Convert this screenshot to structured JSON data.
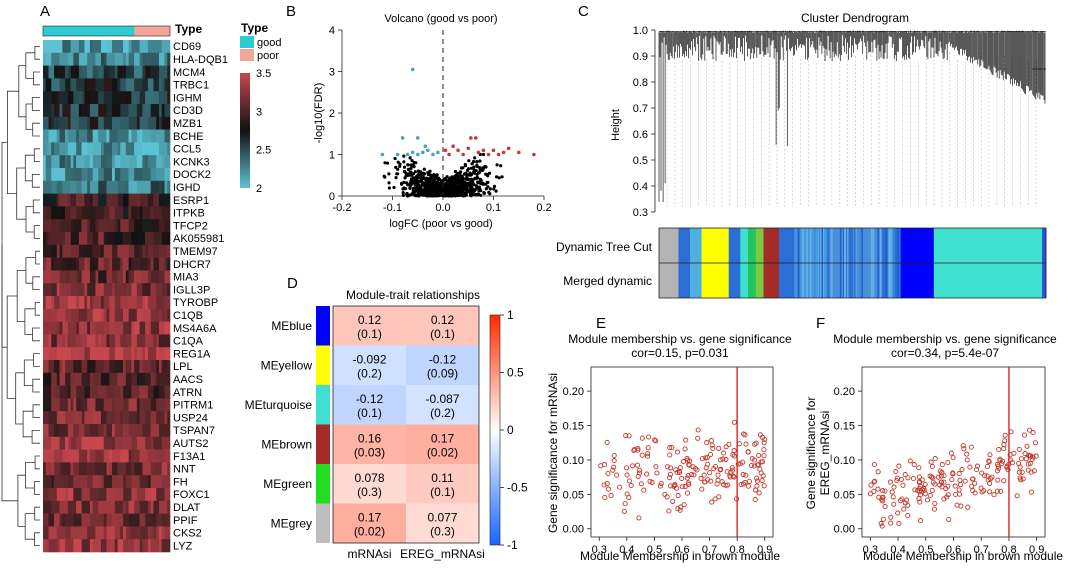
{
  "panel_labels": {
    "a": "A",
    "b": "B",
    "c": "C",
    "d": "D",
    "e": "E",
    "f": "F"
  },
  "colors": {
    "good": "#2ecbd1",
    "poor": "#f4a59a",
    "heat_low": "#5cc3d4",
    "heat_mid": "#111111",
    "heat_high": "#c8464e",
    "volcano_up": "#c43a3a",
    "volcano_down": "#4f9fc6",
    "volcano_ns": "#000000",
    "corr_neg": "#1565ff",
    "corr_pos": "#ff2a00",
    "scatter": "#c0392b",
    "cutline": "#d62728"
  },
  "chart_data": [
    {
      "panel": "A",
      "type": "heatmap",
      "annotation_label": "Type",
      "legend_title": "Type",
      "groups": [
        {
          "name": "good",
          "fraction": 0.72
        },
        {
          "name": "poor",
          "fraction": 0.28
        }
      ],
      "colorbar": {
        "min": 2,
        "max": 3.5,
        "ticks": [
          "3.5",
          "3",
          "2.5",
          "2"
        ]
      },
      "genes": [
        {
          "name": "CD69",
          "level": 2.15
        },
        {
          "name": "HLA-DQB1",
          "level": 2.25
        },
        {
          "name": "MCM4",
          "level": 2.55
        },
        {
          "name": "TRBC1",
          "level": 2.6
        },
        {
          "name": "IGHM",
          "level": 2.62
        },
        {
          "name": "CD3D",
          "level": 2.6
        },
        {
          "name": "MZB1",
          "level": 2.65
        },
        {
          "name": "BCHE",
          "level": 2.2
        },
        {
          "name": "CCL5",
          "level": 2.15
        },
        {
          "name": "KCNK3",
          "level": 2.2
        },
        {
          "name": "DOCK2",
          "level": 2.25
        },
        {
          "name": "IGHD",
          "level": 2.35
        },
        {
          "name": "ESRP1",
          "level": 2.9
        },
        {
          "name": "ITPKB",
          "level": 2.95
        },
        {
          "name": "TFCP2",
          "level": 2.95
        },
        {
          "name": "AK055981",
          "level": 3.0
        },
        {
          "name": "TMEM97",
          "level": 3.0
        },
        {
          "name": "DHCR7",
          "level": 3.05
        },
        {
          "name": "MIA3",
          "level": 3.1
        },
        {
          "name": "IGLL3P",
          "level": 3.2
        },
        {
          "name": "TYROBP",
          "level": 3.3
        },
        {
          "name": "C1QB",
          "level": 3.25
        },
        {
          "name": "MS4A6A",
          "level": 3.25
        },
        {
          "name": "C1QA",
          "level": 3.2
        },
        {
          "name": "REG1A",
          "level": 3.45
        },
        {
          "name": "LPL",
          "level": 3.1
        },
        {
          "name": "AACS",
          "level": 3.05
        },
        {
          "name": "ATRN",
          "level": 3.05
        },
        {
          "name": "PITRM1",
          "level": 3.1
        },
        {
          "name": "USP24",
          "level": 3.15
        },
        {
          "name": "TSPAN7",
          "level": 3.2
        },
        {
          "name": "AUTS2",
          "level": 3.3
        },
        {
          "name": "F13A1",
          "level": 3.3
        },
        {
          "name": "NNT",
          "level": 3.2
        },
        {
          "name": "FH",
          "level": 3.15
        },
        {
          "name": "FOXC1",
          "level": 3.25
        },
        {
          "name": "DLAT",
          "level": 3.2
        },
        {
          "name": "PPIF",
          "level": 3.15
        },
        {
          "name": "CKS2",
          "level": 3.25
        },
        {
          "name": "LYZ",
          "level": 3.3
        }
      ]
    },
    {
      "panel": "B",
      "type": "scatter",
      "title": "Volcano (good vs poor)",
      "xlabel": "logFC (poor vs good)",
      "ylabel": "-log10(FDR)",
      "xlim": [
        -0.2,
        0.2
      ],
      "ylim": [
        0,
        4
      ],
      "xticks": [
        -0.2,
        -0.1,
        0.0,
        0.1,
        0.2
      ],
      "yticks": [
        0,
        1,
        2,
        3,
        4
      ],
      "xtick_labels": [
        "-0.2",
        "-0.1",
        "0.0",
        "0.1",
        "0.2"
      ],
      "ytick_labels": [
        "0",
        "1",
        "2",
        "3",
        "4"
      ],
      "vline": 0,
      "up": [
        [
          0.005,
          1.1
        ],
        [
          0.012,
          1.0
        ],
        [
          0.02,
          1.2
        ],
        [
          0.03,
          1.1
        ],
        [
          0.04,
          1.0
        ],
        [
          0.05,
          1.15
        ],
        [
          0.055,
          1.4
        ],
        [
          0.065,
          1.4
        ],
        [
          0.07,
          1.05
        ],
        [
          0.08,
          1.1
        ],
        [
          0.09,
          1.0
        ],
        [
          0.1,
          1.1
        ],
        [
          0.11,
          1.0
        ],
        [
          0.12,
          1.05
        ],
        [
          0.13,
          1.15
        ],
        [
          0.15,
          1.05
        ],
        [
          0.18,
          1.0
        ]
      ],
      "down": [
        [
          -0.06,
          3.05
        ],
        [
          -0.08,
          1.4
        ],
        [
          -0.05,
          1.4
        ],
        [
          -0.03,
          1.1
        ],
        [
          -0.04,
          1.05
        ],
        [
          -0.02,
          1.0
        ],
        [
          -0.05,
          1.0
        ],
        [
          -0.06,
          1.05
        ],
        [
          -0.07,
          1.0
        ],
        [
          -0.09,
          1.0
        ],
        [
          -0.12,
          1.0
        ],
        [
          -0.01,
          1.05
        ],
        [
          -0.035,
          1.2
        ]
      ]
    },
    {
      "panel": "C",
      "type": "line",
      "title": "Cluster Dendrogram",
      "ylabel": "Height",
      "ylim": [
        0.3,
        1.0
      ],
      "yticks": [
        "1.0",
        "0.9",
        "0.8",
        "0.7",
        "0.6",
        "0.5",
        "0.4",
        "0.3"
      ],
      "row_labels": [
        "Dynamic Tree Cut",
        "Merged dynamic"
      ],
      "module_bands": [
        {
          "color": "#b4b4b4",
          "start": 0.0,
          "end": 0.05
        },
        {
          "color": "#2b6fd6",
          "start": 0.05,
          "end": 0.08
        },
        {
          "color": "#4fb0e0",
          "start": 0.08,
          "end": 0.11
        },
        {
          "color": "#ffff00",
          "start": 0.11,
          "end": 0.18
        },
        {
          "color": "#2b6fd6",
          "start": 0.18,
          "end": 0.21
        },
        {
          "color": "#40e0d0",
          "start": 0.21,
          "end": 0.23
        },
        {
          "color": "#22c55e",
          "start": 0.23,
          "end": 0.25
        },
        {
          "color": "#7ac943",
          "start": 0.25,
          "end": 0.27
        },
        {
          "color": "#a52a2a",
          "start": 0.27,
          "end": 0.31
        },
        {
          "color": "#2b6fd6",
          "start": 0.31,
          "end": 0.35
        },
        {
          "color": "#4a90d9",
          "start": 0.35,
          "end": 0.62
        },
        {
          "color": "#0000ff",
          "start": 0.62,
          "end": 0.71
        },
        {
          "color": "#40e0d0",
          "start": 0.71,
          "end": 0.99
        },
        {
          "color": "#2b4fd6",
          "start": 0.99,
          "end": 1.0
        }
      ]
    },
    {
      "panel": "D",
      "type": "heatmap",
      "title": "Module-trait relationships",
      "columns": [
        "mRNAsi",
        "EREG_mRNAsi"
      ],
      "rows": [
        {
          "module": "MEblue",
          "color": "#0000ff",
          "cells": [
            {
              "r": 0.12,
              "text": "0.12",
              "p": "(0.1)"
            },
            {
              "r": 0.12,
              "text": "0.12",
              "p": "(0.1)"
            }
          ]
        },
        {
          "module": "MEyellow",
          "color": "#ffff00",
          "cells": [
            {
              "r": -0.092,
              "text": "-0.092",
              "p": "(0.2)"
            },
            {
              "r": -0.12,
              "text": "-0.12",
              "p": "(0.09)"
            }
          ]
        },
        {
          "module": "MEturquoise",
          "color": "#40e0d0",
          "cells": [
            {
              "r": -0.12,
              "text": "-0.12",
              "p": "(0.1)"
            },
            {
              "r": -0.087,
              "text": "-0.087",
              "p": "(0.2)"
            }
          ]
        },
        {
          "module": "MEbrown",
          "color": "#a52a2a",
          "cells": [
            {
              "r": 0.16,
              "text": "0.16",
              "p": "(0.03)"
            },
            {
              "r": 0.17,
              "text": "0.17",
              "p": "(0.02)"
            }
          ]
        },
        {
          "module": "MEgreen",
          "color": "#22dd22",
          "cells": [
            {
              "r": 0.078,
              "text": "0.078",
              "p": "(0.3)"
            },
            {
              "r": 0.11,
              "text": "0.11",
              "p": "(0.1)"
            }
          ]
        },
        {
          "module": "MEgrey",
          "color": "#bebebe",
          "cells": [
            {
              "r": 0.17,
              "text": "0.17",
              "p": "(0.02)"
            },
            {
              "r": 0.077,
              "text": "0.077",
              "p": "(0.3)"
            }
          ]
        }
      ],
      "colorbar": {
        "min": -1,
        "max": 1,
        "ticks": [
          1,
          0.5,
          0,
          -0.5,
          -1
        ],
        "tick_labels": [
          "1",
          "0.5",
          "0",
          "-0.5",
          "-1"
        ]
      }
    },
    {
      "panel": "E",
      "type": "scatter",
      "title": "Module membership vs. gene significance",
      "subtitle": "cor=0.15, p=0.031",
      "xlabel": "Module Membership in brown module",
      "ylabel_lines": [
        "Gene significance for  mRNAsi"
      ],
      "xlim": [
        0.27,
        0.93
      ],
      "ylim": [
        -0.012,
        0.235
      ],
      "xticks": [
        0.3,
        0.4,
        0.5,
        0.6,
        0.7,
        0.8,
        0.9
      ],
      "yticks": [
        0.0,
        0.05,
        0.1,
        0.15,
        0.2
      ],
      "xtick_labels": [
        "0.3",
        "0.4",
        "0.5",
        "0.6",
        "0.7",
        "0.8",
        "0.9"
      ],
      "ytick_labels": [
        "0.00",
        "0.05",
        "0.10",
        "0.15",
        "0.20"
      ],
      "vline": 0.8,
      "n": 200,
      "seed": 7,
      "slope": 0.04,
      "intercept": 0.075,
      "noise": 0.05
    },
    {
      "panel": "F",
      "type": "scatter",
      "title": "Module membership vs. gene significance",
      "subtitle": "cor=0.34, p=5.4e-07",
      "xlabel": "Module Membership in brown module",
      "ylabel_lines": [
        "Gene significance for",
        "EREG_mRNAsi"
      ],
      "xlim": [
        0.27,
        0.93
      ],
      "ylim": [
        -0.012,
        0.235
      ],
      "xticks": [
        0.3,
        0.4,
        0.5,
        0.6,
        0.7,
        0.8,
        0.9
      ],
      "yticks": [
        0.0,
        0.05,
        0.1,
        0.15,
        0.2
      ],
      "xtick_labels": [
        "0.3",
        "0.4",
        "0.5",
        "0.6",
        "0.7",
        "0.8",
        "0.9"
      ],
      "ytick_labels": [
        "0.00",
        "0.05",
        "0.10",
        "0.15",
        "0.20"
      ],
      "vline": 0.8,
      "n": 200,
      "seed": 19,
      "slope": 0.11,
      "intercept": 0.04,
      "noise": 0.045
    }
  ]
}
